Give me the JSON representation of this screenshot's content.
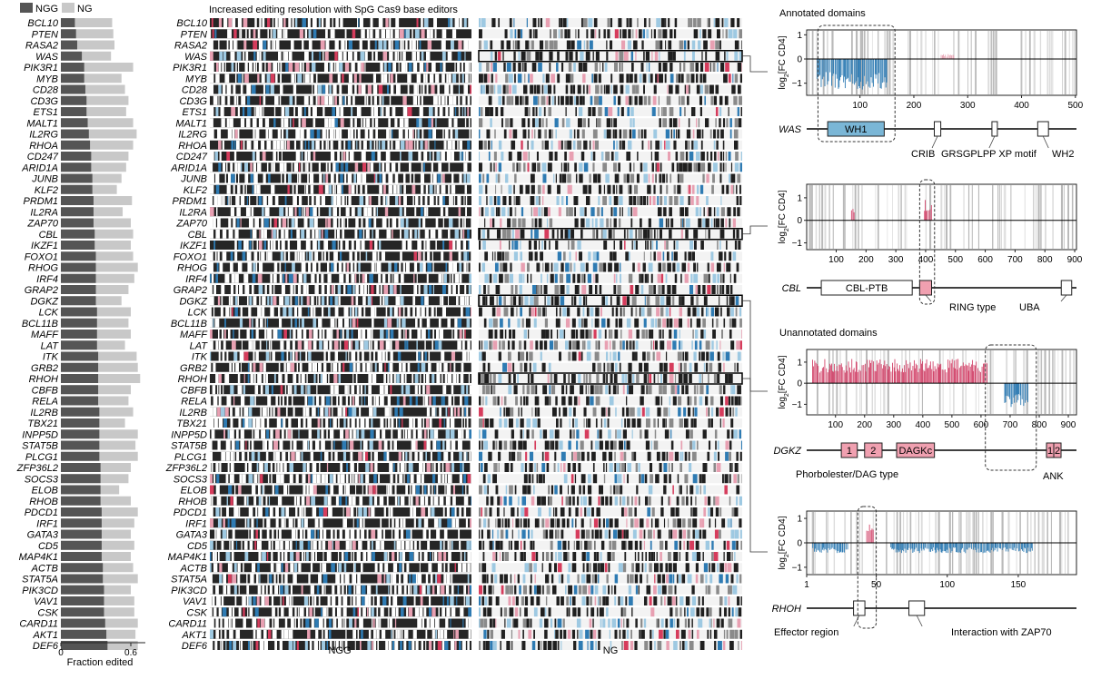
{
  "legend": {
    "ngg": "NGG",
    "ng": "NG"
  },
  "genes": [
    "BCL10",
    "PTEN",
    "RASA2",
    "WAS",
    "PIK3R1",
    "MYB",
    "CD28",
    "CD3G",
    "ETS1",
    "MALT1",
    "IL2RG",
    "RHOA",
    "CD247",
    "ARID1A",
    "JUNB",
    "KLF2",
    "PRDM1",
    "IL2RA",
    "ZAP70",
    "CBL",
    "IKZF1",
    "FOXO1",
    "RHOG",
    "IRF4",
    "GRAP2",
    "DGKZ",
    "LCK",
    "BCL11B",
    "MAFF",
    "LAT",
    "ITK",
    "GRB2",
    "RHOH",
    "CBFB",
    "RELA",
    "IL2RB",
    "TBX21",
    "INPP5D",
    "STAT5B",
    "PLCG1",
    "ZFP36L2",
    "SOCS3",
    "ELOB",
    "RHOB",
    "PDCD1",
    "IRF1",
    "GATA3",
    "CD5",
    "MAP4K1",
    "ACTB",
    "STAT5A",
    "PIK3CD",
    "VAV1",
    "CSK",
    "CARD11",
    "AKT1",
    "DEF6"
  ],
  "bar_chart": {
    "type": "bar",
    "orientation": "horizontal",
    "xlabel": "Fraction edited",
    "xticks": [
      "0",
      "0.6"
    ],
    "xlim": [
      0,
      0.8
    ],
    "series": [
      {
        "name": "NGG",
        "values": [
          0.12,
          0.13,
          0.14,
          0.18,
          0.2,
          0.2,
          0.21,
          0.22,
          0.22,
          0.23,
          0.24,
          0.25,
          0.26,
          0.26,
          0.27,
          0.27,
          0.28,
          0.28,
          0.28,
          0.29,
          0.29,
          0.3,
          0.3,
          0.3,
          0.3,
          0.3,
          0.31,
          0.31,
          0.31,
          0.31,
          0.32,
          0.32,
          0.32,
          0.32,
          0.32,
          0.33,
          0.33,
          0.33,
          0.33,
          0.33,
          0.34,
          0.34,
          0.34,
          0.34,
          0.35,
          0.35,
          0.35,
          0.35,
          0.35,
          0.36,
          0.36,
          0.37,
          0.37,
          0.37,
          0.38,
          0.39,
          0.4
        ]
      },
      {
        "name": "NG",
        "values": [
          0.44,
          0.45,
          0.46,
          0.43,
          0.62,
          0.52,
          0.55,
          0.58,
          0.56,
          0.62,
          0.65,
          0.62,
          0.58,
          0.56,
          0.52,
          0.48,
          0.61,
          0.53,
          0.6,
          0.62,
          0.6,
          0.62,
          0.66,
          0.63,
          0.58,
          0.52,
          0.6,
          0.58,
          0.6,
          0.55,
          0.65,
          0.66,
          0.68,
          0.6,
          0.58,
          0.62,
          0.55,
          0.66,
          0.64,
          0.66,
          0.6,
          0.58,
          0.5,
          0.6,
          0.66,
          0.63,
          0.6,
          0.63,
          0.6,
          0.62,
          0.66,
          0.6,
          0.63,
          0.63,
          0.66,
          0.64,
          0.66
        ]
      }
    ]
  },
  "heatmap": {
    "title": "Increased editing resolution with SpG Cas9 base editors",
    "panels": [
      "NGG",
      "NG"
    ],
    "highlight_genes": [
      "WAS",
      "CBL",
      "DGKZ",
      "RHOH"
    ]
  },
  "domain_sections": {
    "annotated": "Annotated domains",
    "unannotated": "Unannotated domains"
  },
  "chart_data": [
    {
      "type": "bar",
      "gene": "WAS",
      "ylabel_main": "log",
      "ylabel_sub": "2",
      "ylabel_rest": "[FC CD4]",
      "ylim": [
        -1.5,
        1.2
      ],
      "yticks": [
        "1",
        "0",
        "−1"
      ],
      "xlim": [
        1,
        502
      ],
      "xticks": [
        "100",
        "200",
        "300",
        "400",
        "500"
      ],
      "effects": [
        {
          "from": 20,
          "to": 150,
          "value": -1.2,
          "color": "#2e7bb3"
        },
        {
          "from": 250,
          "to": 275,
          "value": 0.2,
          "color": "#e8a4b4"
        }
      ],
      "domains": [
        {
          "label": "WH1",
          "start": 40,
          "end": 145,
          "filled": true,
          "color": "#7ab6d6",
          "inside": true
        },
        {
          "label": "CRIB",
          "start": 238,
          "end": 250,
          "filled": false
        },
        {
          "label": "GRSGPLPP XP motif",
          "start": 345,
          "end": 355,
          "filled": false
        },
        {
          "label": "WH2",
          "start": 430,
          "end": 450,
          "filled": false
        }
      ]
    },
    {
      "type": "bar",
      "gene": "CBL",
      "ylabel_main": "log",
      "ylabel_sub": "2",
      "ylabel_rest": "[FC CD4]",
      "ylim": [
        -1.3,
        1.6
      ],
      "yticks": [
        "1",
        "0",
        "−1"
      ],
      "xlim": [
        1,
        906
      ],
      "xticks": [
        "100",
        "200",
        "300",
        "400",
        "500",
        "600",
        "700",
        "800",
        "900"
      ],
      "effects": [
        {
          "from": 150,
          "to": 160,
          "value": 0.5,
          "color": "#d2446a"
        },
        {
          "from": 395,
          "to": 420,
          "value": 0.9,
          "color": "#d2446a"
        }
      ],
      "domains": [
        {
          "label": "CBL-PTB",
          "start": 50,
          "end": 355,
          "filled": false,
          "inside": true
        },
        {
          "label": "RING type",
          "start": 380,
          "end": 420,
          "filled": true,
          "color": "#f0a0b0"
        },
        {
          "label": "UBA",
          "start": 855,
          "end": 890,
          "filled": false
        }
      ]
    },
    {
      "type": "bar",
      "gene": "DGKZ",
      "ylabel_main": "log",
      "ylabel_sub": "2",
      "ylabel_rest": "[FC CD4]",
      "ylim": [
        -1.5,
        1.6
      ],
      "yticks": [
        "1",
        "0",
        "−1"
      ],
      "xlim": [
        1,
        928
      ],
      "xticks": [
        "100",
        "200",
        "300",
        "400",
        "500",
        "600",
        "700",
        "800",
        "900"
      ],
      "effects": [
        {
          "from": 20,
          "to": 620,
          "value": 1.1,
          "color": "#d2446a"
        },
        {
          "from": 680,
          "to": 760,
          "value": -1.1,
          "color": "#2e7bb3"
        }
      ],
      "domains": [
        {
          "label": "1",
          "start": 120,
          "end": 175,
          "filled": true,
          "color": "#f0a0b0",
          "inside": true
        },
        {
          "label": "2",
          "start": 200,
          "end": 260,
          "filled": true,
          "color": "#f0a0b0",
          "inside": true
        },
        {
          "label": "DAGKc",
          "start": 310,
          "end": 440,
          "filled": true,
          "color": "#f0a0b0",
          "inside": true
        },
        {
          "label": "1",
          "start": 825,
          "end": 850,
          "filled": true,
          "color": "#f0a0b0",
          "inside": true
        },
        {
          "label": "2",
          "start": 850,
          "end": 875,
          "filled": true,
          "color": "#f0a0b0",
          "inside": true
        }
      ],
      "domain_captions": [
        "Phorbolester/DAG type",
        "ANK"
      ]
    },
    {
      "type": "bar",
      "gene": "RHOH",
      "ylabel_main": "log",
      "ylabel_sub": "2",
      "ylabel_rest": "[FC CD4]",
      "ylim": [
        -1.3,
        1.3
      ],
      "yticks": [
        "1",
        "0",
        "−1"
      ],
      "xlim": [
        1,
        191
      ],
      "xticks": [
        "1",
        "50",
        "100",
        "150"
      ],
      "effects": [
        {
          "from": 5,
          "to": 30,
          "value": -0.4,
          "color": "#2e7bb3"
        },
        {
          "from": 43,
          "to": 48,
          "value": 1.0,
          "color": "#d2446a"
        },
        {
          "from": 60,
          "to": 160,
          "value": -0.4,
          "color": "#2e7bb3"
        }
      ],
      "domains": [
        {
          "label": "Effector region",
          "start": 34,
          "end": 42,
          "filled": false
        },
        {
          "label": "Interaction with ZAP70",
          "start": 73,
          "end": 84,
          "filled": false
        }
      ]
    }
  ]
}
